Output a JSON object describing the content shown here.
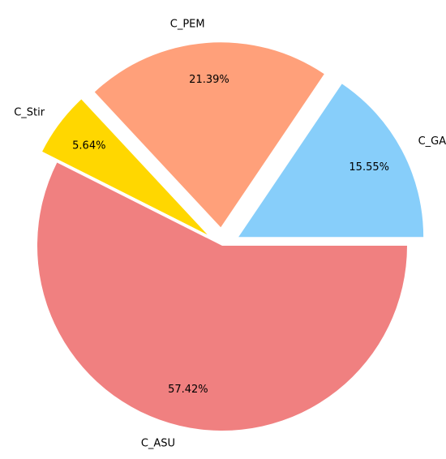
{
  "chart_data": {
    "type": "pie",
    "title": "",
    "slices": [
      {
        "label": "C_GAS",
        "value": 15.55,
        "pct_label": "15.55%",
        "color": "#87CEFA",
        "exploded": true
      },
      {
        "label": "C_PEM",
        "value": 21.39,
        "pct_label": "21.39%",
        "color": "#FFA07A",
        "exploded": true
      },
      {
        "label": "C_Stir",
        "value": 5.64,
        "pct_label": "5.64%",
        "color": "#FFD700",
        "exploded": true
      },
      {
        "label": "C_ASU",
        "value": 57.42,
        "pct_label": "57.42%",
        "color": "#F08080",
        "exploded": false
      }
    ],
    "start_angle_deg": 0,
    "direction": "counterclockwise",
    "legend": "none"
  }
}
